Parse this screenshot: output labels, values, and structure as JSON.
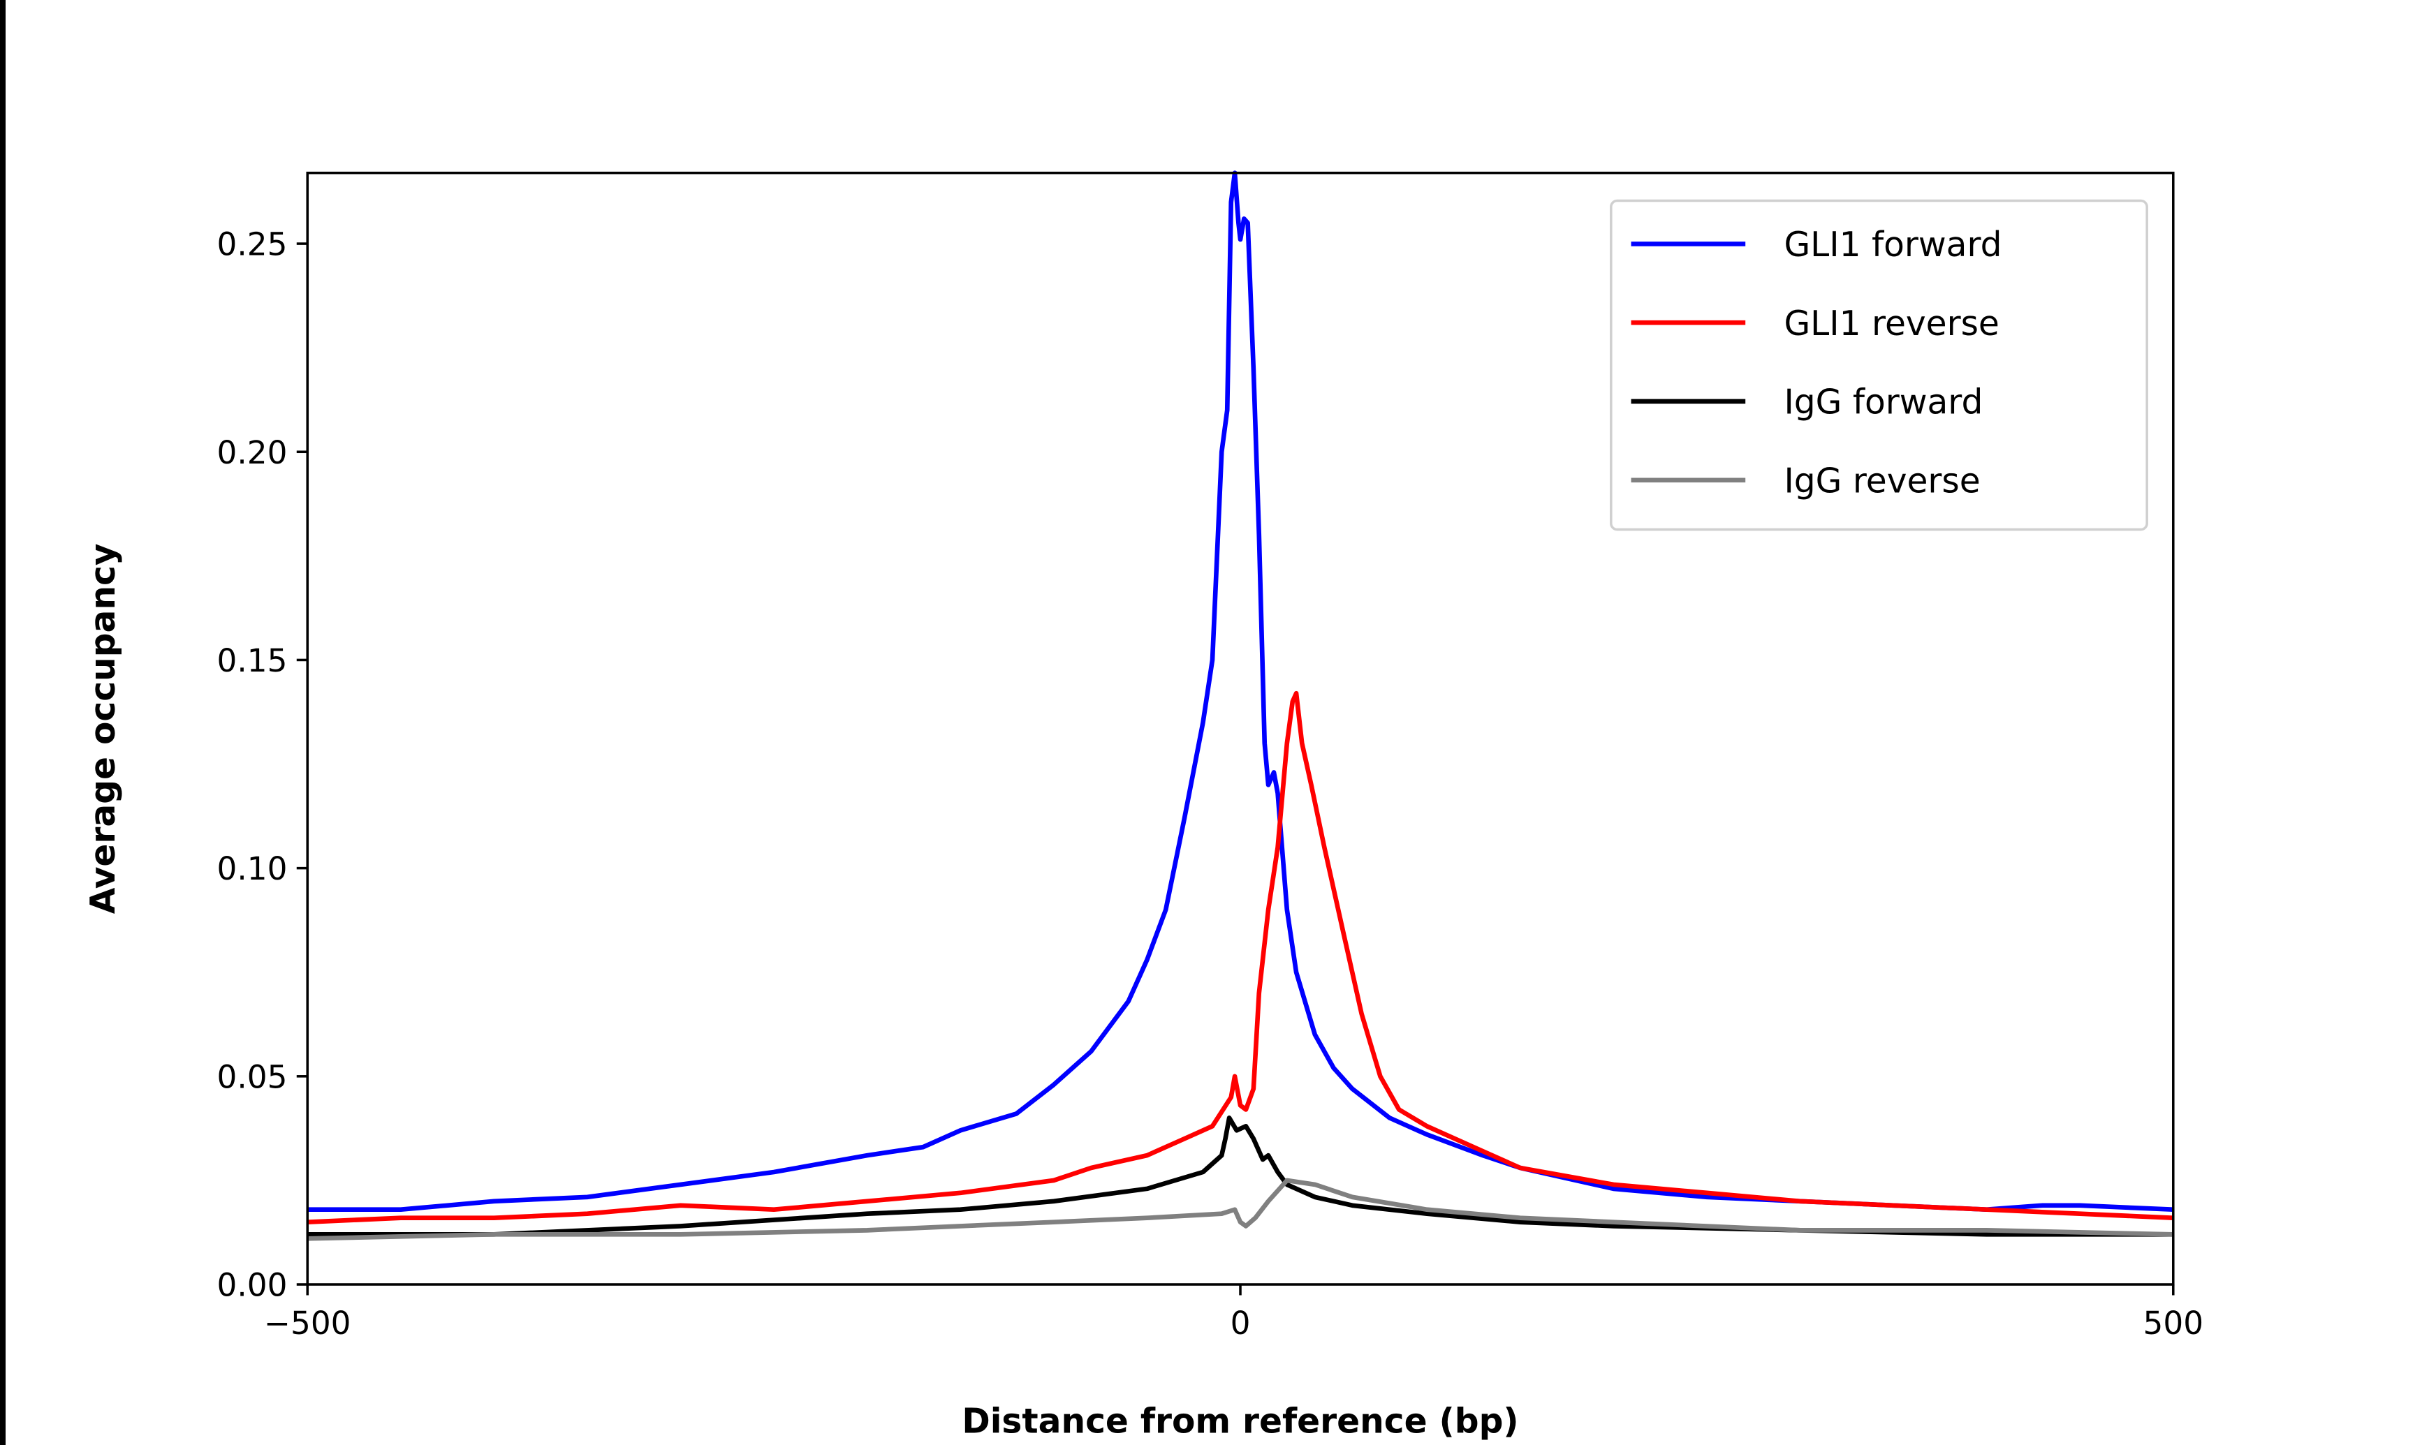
{
  "chart_data": {
    "type": "line",
    "title": "",
    "xlabel": "Distance from reference (bp)",
    "ylabel": "Average occupancy",
    "xlim": [
      -500,
      500
    ],
    "ylim": [
      0,
      0.267
    ],
    "xticks": [
      -500,
      0,
      500
    ],
    "xtick_labels": [
      "−500",
      "0",
      "500"
    ],
    "yticks": [
      0,
      0.05,
      0.1,
      0.15,
      0.2,
      0.25
    ],
    "ytick_labels": [
      "0.00",
      "0.05",
      "0.10",
      "0.15",
      "0.20",
      "0.25"
    ],
    "grid": false,
    "legend_position": "top-right",
    "series": [
      {
        "name": "GLI1 forward",
        "color": "#0000ff",
        "x": [
          -500,
          -450,
          -400,
          -350,
          -300,
          -250,
          -200,
          -170,
          -150,
          -120,
          -100,
          -80,
          -60,
          -50,
          -40,
          -30,
          -20,
          -15,
          -10,
          -7,
          -5,
          -3,
          -1,
          0,
          2,
          4,
          7,
          10,
          13,
          15,
          18,
          20,
          25,
          30,
          40,
          50,
          60,
          80,
          100,
          130,
          150,
          200,
          250,
          300,
          350,
          400,
          430,
          450,
          500
        ],
        "y": [
          0.018,
          0.018,
          0.02,
          0.021,
          0.024,
          0.027,
          0.031,
          0.033,
          0.037,
          0.041,
          0.048,
          0.056,
          0.068,
          0.078,
          0.09,
          0.112,
          0.135,
          0.15,
          0.2,
          0.21,
          0.26,
          0.267,
          0.255,
          0.251,
          0.256,
          0.255,
          0.22,
          0.18,
          0.13,
          0.12,
          0.123,
          0.118,
          0.09,
          0.075,
          0.06,
          0.052,
          0.047,
          0.04,
          0.036,
          0.031,
          0.028,
          0.023,
          0.021,
          0.02,
          0.019,
          0.018,
          0.019,
          0.019,
          0.018
        ]
      },
      {
        "name": "GLI1 reverse",
        "color": "#ff0000",
        "x": [
          -500,
          -450,
          -400,
          -350,
          -300,
          -250,
          -200,
          -150,
          -100,
          -80,
          -50,
          -30,
          -15,
          -5,
          -3,
          0,
          3,
          7,
          10,
          15,
          20,
          25,
          28,
          30,
          33,
          38,
          45,
          55,
          65,
          75,
          85,
          100,
          130,
          150,
          200,
          250,
          300,
          350,
          400,
          450,
          500
        ],
        "y": [
          0.015,
          0.016,
          0.016,
          0.017,
          0.019,
          0.018,
          0.02,
          0.022,
          0.025,
          0.028,
          0.031,
          0.035,
          0.038,
          0.045,
          0.05,
          0.043,
          0.042,
          0.047,
          0.07,
          0.09,
          0.105,
          0.13,
          0.14,
          0.142,
          0.13,
          0.12,
          0.105,
          0.085,
          0.065,
          0.05,
          0.042,
          0.038,
          0.032,
          0.028,
          0.024,
          0.022,
          0.02,
          0.019,
          0.018,
          0.017,
          0.016
        ]
      },
      {
        "name": "IgG forward",
        "color": "#000000",
        "x": [
          -500,
          -400,
          -300,
          -200,
          -150,
          -100,
          -50,
          -20,
          -10,
          -8,
          -6,
          -2,
          3,
          7,
          12,
          15,
          20,
          25,
          40,
          60,
          100,
          150,
          200,
          300,
          400,
          500
        ],
        "y": [
          0.012,
          0.012,
          0.014,
          0.017,
          0.018,
          0.02,
          0.023,
          0.027,
          0.031,
          0.035,
          0.04,
          0.037,
          0.038,
          0.035,
          0.03,
          0.031,
          0.027,
          0.024,
          0.021,
          0.019,
          0.017,
          0.015,
          0.014,
          0.013,
          0.012,
          0.012
        ]
      },
      {
        "name": "IgG reverse",
        "color": "#808080",
        "x": [
          -500,
          -400,
          -300,
          -200,
          -150,
          -100,
          -50,
          -10,
          -3,
          0,
          3,
          8,
          15,
          25,
          40,
          60,
          100,
          150,
          200,
          300,
          400,
          500
        ],
        "y": [
          0.011,
          0.012,
          0.012,
          0.013,
          0.014,
          0.015,
          0.016,
          0.017,
          0.018,
          0.015,
          0.014,
          0.016,
          0.02,
          0.025,
          0.024,
          0.021,
          0.018,
          0.016,
          0.015,
          0.013,
          0.013,
          0.012
        ]
      }
    ]
  }
}
